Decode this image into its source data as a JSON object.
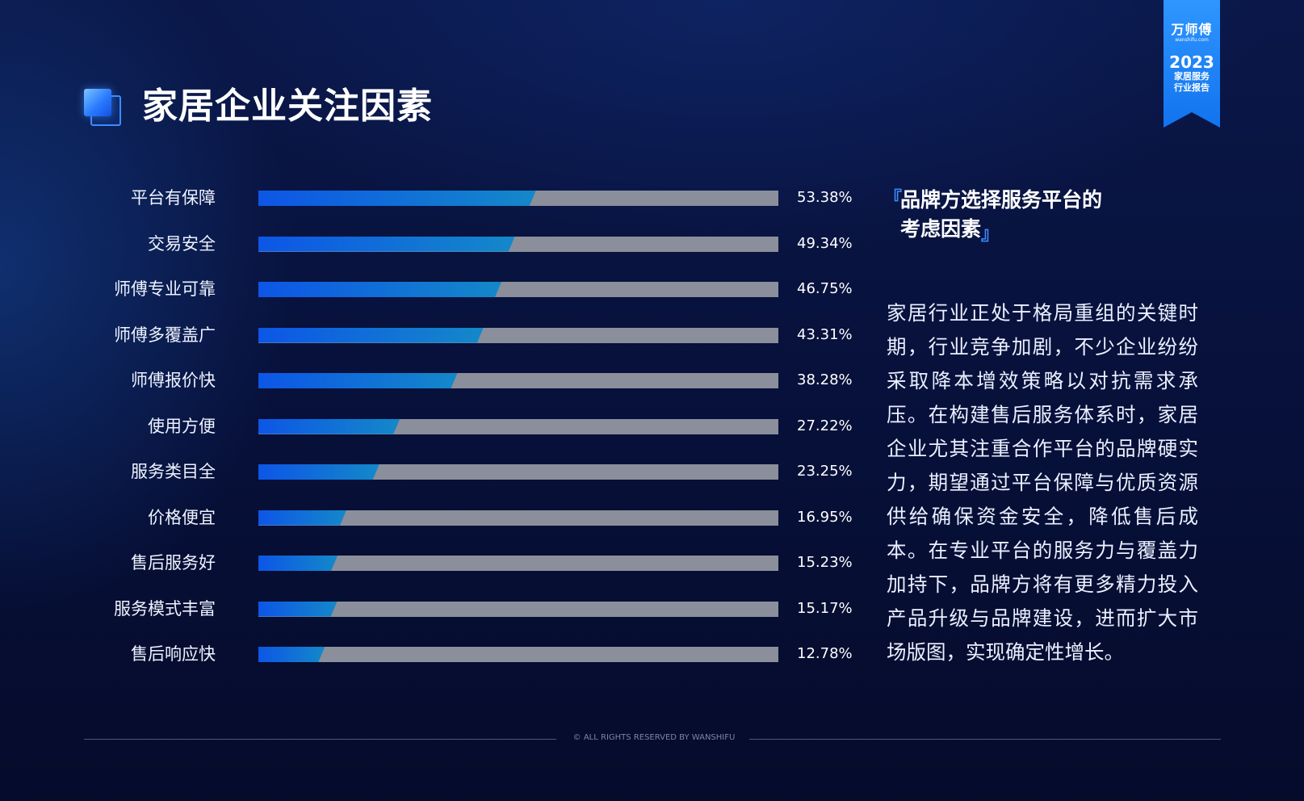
{
  "header": {
    "title": "家居企业关注因素"
  },
  "badge": {
    "brand": "万师傅",
    "site": "wanshifu.com",
    "year": "2023",
    "line1": "家居服务",
    "line2": "行业报告"
  },
  "chart_data": {
    "type": "bar",
    "orientation": "horizontal",
    "categories": [
      "平台有保障",
      "交易安全",
      "师傅专业可靠",
      "师傅多覆盖广",
      "师傅报价快",
      "使用方便",
      "服务类目全",
      "价格便宜",
      "售后服务好",
      "服务模式丰富",
      "售后响应快"
    ],
    "values": [
      53.38,
      49.34,
      46.75,
      43.31,
      38.28,
      27.22,
      23.25,
      16.95,
      15.23,
      15.17,
      12.78
    ],
    "value_labels": [
      "53.38%",
      "49.34%",
      "46.75%",
      "43.31%",
      "38.28%",
      "27.22%",
      "23.25%",
      "16.95%",
      "15.23%",
      "15.17%",
      "12.78%"
    ],
    "xlim": [
      0,
      100
    ],
    "colors": {
      "fill_start": "#0d56e6",
      "fill_end": "#1488c9",
      "edge": "#35e6ff",
      "track": "#8a8f9b"
    }
  },
  "sidebar": {
    "bracket_open": "『",
    "bracket_close": "』",
    "heading_line1": "品牌方选择服务平台的",
    "heading_line2": "考虑因素",
    "paragraph": "家居行业正处于格局重组的关键时期，行业竞争加剧，不少企业纷纷采取降本增效策略以对抗需求承压。在构建售后服务体系时，家居企业尤其注重合作平台的品牌硬实力，期望通过平台保障与优质资源供给确保资金安全，降低售后成本。在专业平台的服务力与覆盖力加持下，品牌方将有更多精力投入产品升级与品牌建设，进而扩大市场版图，实现确定性增长。"
  },
  "footer": {
    "text": "© ALL RIGHTS RESERVED BY WANSHIFU"
  }
}
